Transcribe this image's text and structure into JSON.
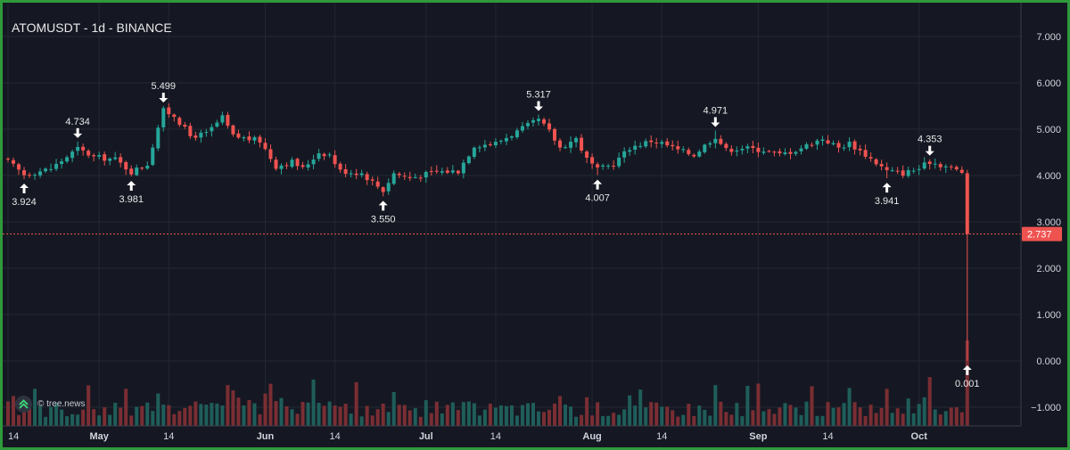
{
  "header": {
    "title": "ATOMUSDT - 1d - BINANCE"
  },
  "watermark": {
    "text": "© tree.news"
  },
  "colors": {
    "up": "#26a69a",
    "down": "#ef5350",
    "background": "#151822",
    "grid": "#232733",
    "text": "#d1d4dc"
  },
  "chart_data": {
    "type": "candlestick",
    "title": "ATOMUSDT - 1d - BINANCE",
    "y_ticks": [
      "7.000",
      "6.000",
      "5.000",
      "4.000",
      "3.000",
      "2.000",
      "1.000",
      "0.000",
      "−1.000"
    ],
    "ylim": [
      -1.25,
      7.6
    ],
    "x_ticks": [
      {
        "label": "14",
        "index": 0
      },
      {
        "label": "May",
        "index": 17
      },
      {
        "label": "14",
        "index": 30
      },
      {
        "label": "Jun",
        "index": 48
      },
      {
        "label": "14",
        "index": 61
      },
      {
        "label": "Jul",
        "index": 78
      },
      {
        "label": "14",
        "index": 91
      },
      {
        "label": "Aug",
        "index": 109
      },
      {
        "label": "14",
        "index": 122
      },
      {
        "label": "Sep",
        "index": 140
      },
      {
        "label": "14",
        "index": 153
      },
      {
        "label": "Oct",
        "index": 170
      }
    ],
    "last_price": {
      "value": 2.737,
      "label": "2.737"
    },
    "annotations": [
      {
        "index": 3,
        "value": 3.924,
        "label": "3.924",
        "type": "low"
      },
      {
        "index": 13,
        "value": 4.734,
        "label": "4.734",
        "type": "high"
      },
      {
        "index": 23,
        "value": 3.981,
        "label": "3.981",
        "type": "low"
      },
      {
        "index": 29,
        "value": 5.499,
        "label": "5.499",
        "type": "high"
      },
      {
        "index": 70,
        "value": 3.55,
        "label": "3.550",
        "type": "low"
      },
      {
        "index": 99,
        "value": 5.317,
        "label": "5.317",
        "type": "high"
      },
      {
        "index": 110,
        "value": 4.007,
        "label": "4.007",
        "type": "low"
      },
      {
        "index": 132,
        "value": 4.971,
        "label": "4.971",
        "type": "high"
      },
      {
        "index": 164,
        "value": 3.941,
        "label": "3.941",
        "type": "low"
      },
      {
        "index": 172,
        "value": 4.353,
        "label": "4.353",
        "type": "high"
      },
      {
        "index": 179,
        "value": 0.001,
        "label": "0.001",
        "type": "low"
      }
    ],
    "anchors": [
      [
        0,
        4.3
      ],
      [
        3,
        4.02
      ],
      [
        8,
        4.15
      ],
      [
        13,
        4.58
      ],
      [
        16,
        4.4
      ],
      [
        20,
        4.35
      ],
      [
        23,
        4.08
      ],
      [
        26,
        4.25
      ],
      [
        28,
        5.05
      ],
      [
        29,
        5.4
      ],
      [
        31,
        5.3
      ],
      [
        34,
        4.85
      ],
      [
        37,
        4.9
      ],
      [
        40,
        5.25
      ],
      [
        42,
        4.85
      ],
      [
        47,
        4.75
      ],
      [
        50,
        4.2
      ],
      [
        53,
        4.3
      ],
      [
        55,
        4.15
      ],
      [
        58,
        4.5
      ],
      [
        60,
        4.45
      ],
      [
        62,
        4.1
      ],
      [
        66,
        4.05
      ],
      [
        70,
        3.68
      ],
      [
        72,
        4.05
      ],
      [
        75,
        3.95
      ],
      [
        80,
        4.08
      ],
      [
        84,
        4.1
      ],
      [
        87,
        4.65
      ],
      [
        91,
        4.7
      ],
      [
        95,
        4.95
      ],
      [
        99,
        5.2
      ],
      [
        101,
        4.95
      ],
      [
        103,
        4.6
      ],
      [
        106,
        4.8
      ],
      [
        108,
        4.35
      ],
      [
        110,
        4.12
      ],
      [
        113,
        4.25
      ],
      [
        116,
        4.6
      ],
      [
        120,
        4.75
      ],
      [
        122,
        4.7
      ],
      [
        125,
        4.55
      ],
      [
        128,
        4.45
      ],
      [
        132,
        4.85
      ],
      [
        134,
        4.55
      ],
      [
        137,
        4.6
      ],
      [
        141,
        4.55
      ],
      [
        144,
        4.45
      ],
      [
        147,
        4.55
      ],
      [
        152,
        4.8
      ],
      [
        155,
        4.6
      ],
      [
        157,
        4.7
      ],
      [
        160,
        4.45
      ],
      [
        164,
        4.1
      ],
      [
        167,
        4.05
      ],
      [
        170,
        4.15
      ],
      [
        172,
        4.3
      ],
      [
        175,
        4.2
      ],
      [
        178,
        4.08
      ]
    ],
    "final_candle": {
      "index": 179,
      "open": 4.05,
      "high": 4.12,
      "low": 0.001,
      "close": 2.737
    },
    "series": [
      {
        "name": "price",
        "kind": "ohlc"
      },
      {
        "name": "volume",
        "kind": "bar"
      }
    ]
  }
}
